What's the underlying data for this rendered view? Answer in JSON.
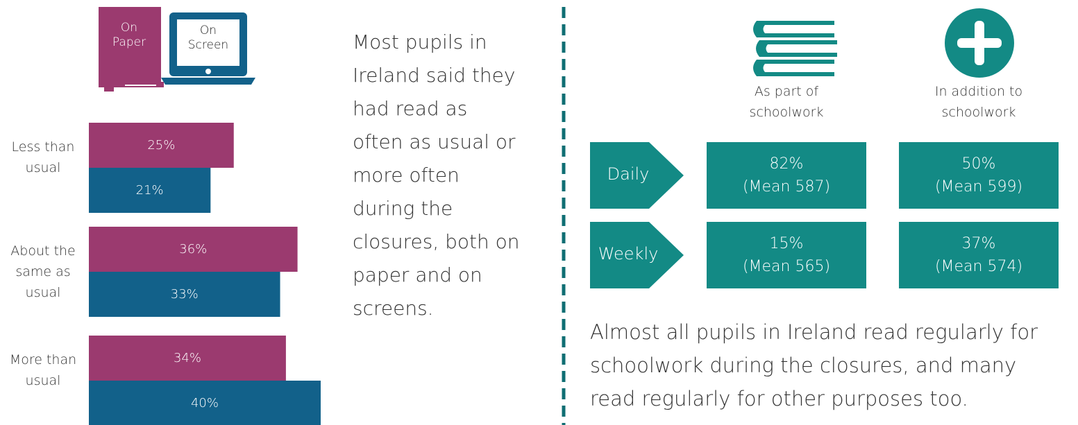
{
  "chart_data": {
    "type": "bar",
    "orientation": "horizontal",
    "categories": [
      "Less than usual",
      "About the same as usual",
      "More than usual"
    ],
    "series": [
      {
        "name": "On Paper",
        "color": "#9b3a6f",
        "values": [
          25,
          36,
          34
        ],
        "value_labels": [
          "25%",
          "36%",
          "34%"
        ]
      },
      {
        "name": "On Screen",
        "color": "#12618a",
        "values": [
          21,
          33,
          40
        ],
        "value_labels": [
          "21%",
          "33%",
          "40%"
        ]
      }
    ]
  },
  "left_text": [
    "Most pupils in",
    "Ireland said they",
    "had read as",
    "often as usual or",
    "more often",
    "during the",
    "closures, both on",
    "paper and on",
    "screens."
  ],
  "table": {
    "columns": [
      "As part of schoolwork",
      "In addition to schoolwork"
    ],
    "rows": [
      {
        "label": "Daily",
        "cells": [
          [
            "82%",
            "(Mean 587)"
          ],
          [
            "50%",
            "(Mean 599)"
          ]
        ]
      },
      {
        "label": "Weekly",
        "cells": [
          [
            "15%",
            "(Mean 565)"
          ],
          [
            "37%",
            "(Mean 574)"
          ]
        ]
      }
    ]
  },
  "bottom_text": [
    "Almost all pupils in Ireland read regularly for",
    "schoolwork during the closures, and many",
    "read regularly for other purposes too."
  ]
}
